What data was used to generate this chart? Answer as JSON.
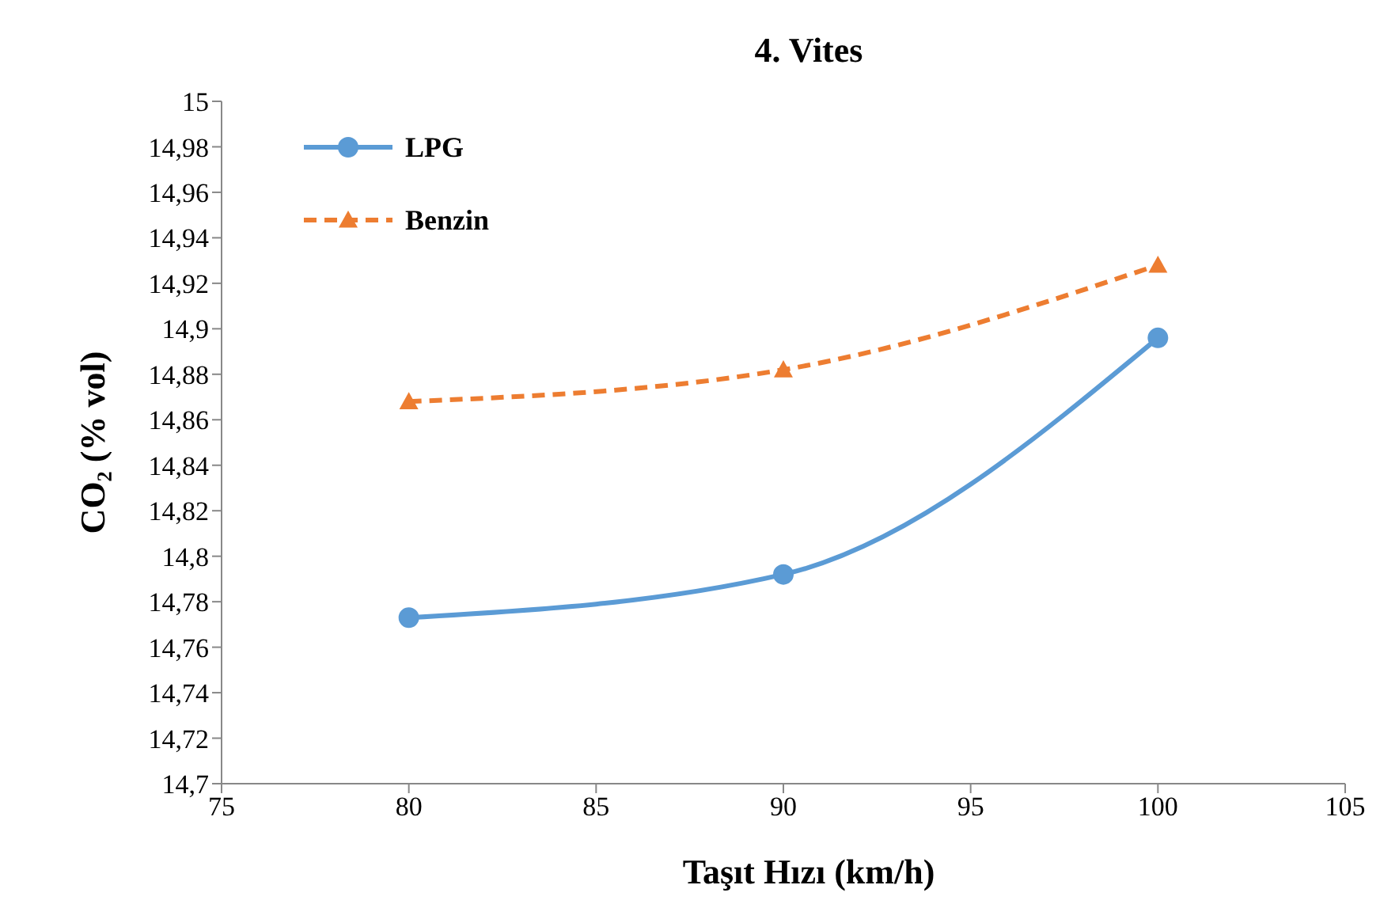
{
  "chart_data": {
    "type": "line",
    "title": "4. Vites",
    "xlabel": "Taşıt Hızı (km/h)",
    "ylabel": "CO₂ (% vol)",
    "x": [
      80,
      90,
      100
    ],
    "series": [
      {
        "name": "LPG",
        "color": "#5b9bd5",
        "values": [
          14.773,
          14.792,
          14.896
        ],
        "marker": "circle",
        "line_style": "solid"
      },
      {
        "name": "Benzin",
        "color": "#ed7d31",
        "values": [
          14.868,
          14.882,
          14.928
        ],
        "marker": "triangle",
        "line_style": "dashed"
      }
    ],
    "xlim": [
      75,
      105
    ],
    "xticks": [
      75,
      80,
      85,
      90,
      95,
      100,
      105
    ],
    "ylim": [
      14.7,
      15
    ],
    "yticks": [
      {
        "value": 14.7,
        "label": "14,7"
      },
      {
        "value": 14.72,
        "label": "14,72"
      },
      {
        "value": 14.74,
        "label": "14,74"
      },
      {
        "value": 14.76,
        "label": "14,76"
      },
      {
        "value": 14.78,
        "label": "14,78"
      },
      {
        "value": 14.8,
        "label": "14,8"
      },
      {
        "value": 14.82,
        "label": "14,82"
      },
      {
        "value": 14.84,
        "label": "14,84"
      },
      {
        "value": 14.86,
        "label": "14,86"
      },
      {
        "value": 14.88,
        "label": "14,88"
      },
      {
        "value": 14.9,
        "label": "14,9"
      },
      {
        "value": 14.92,
        "label": "14,92"
      },
      {
        "value": 14.94,
        "label": "14,94"
      },
      {
        "value": 14.96,
        "label": "14,96"
      },
      {
        "value": 14.98,
        "label": "14,98"
      },
      {
        "value": 15,
        "label": "15"
      }
    ],
    "grid": false,
    "legend": "top left"
  }
}
